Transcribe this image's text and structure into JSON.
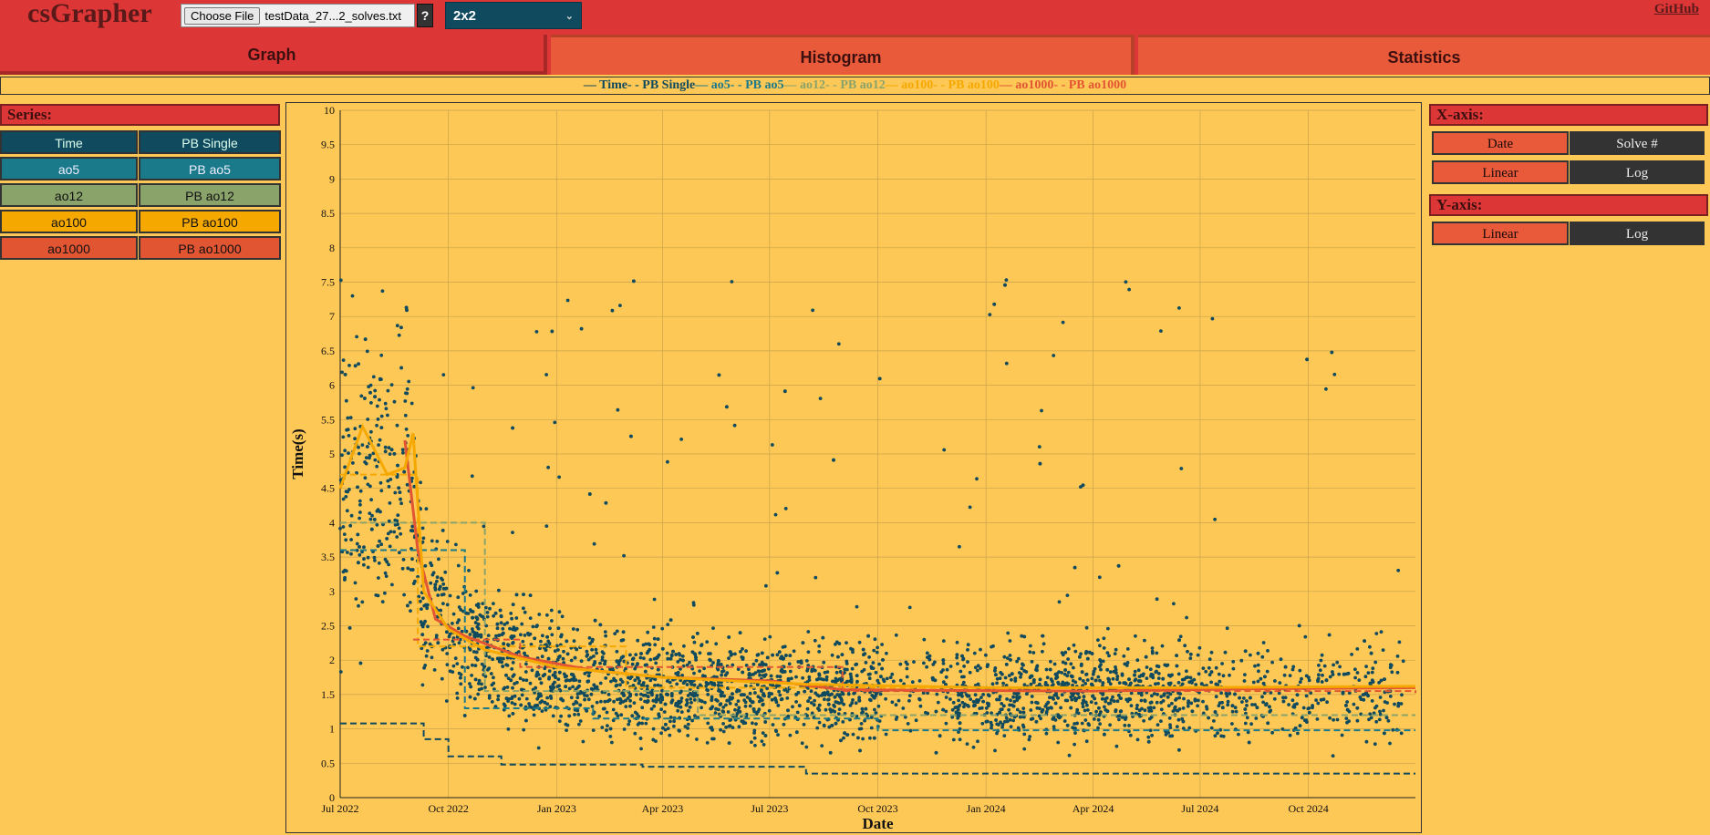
{
  "app": {
    "title": "csGrapher",
    "github_label": "GitHub",
    "file": {
      "button_label": "Choose File",
      "file_name": "testData_27...2_solves.txt"
    },
    "help_label": "?",
    "layout_select": {
      "value": "2x2",
      "chevron": "chevron-down-icon"
    }
  },
  "tabs": [
    {
      "label": "Graph",
      "active": true
    },
    {
      "label": "Histogram",
      "active": false
    },
    {
      "label": "Statistics",
      "active": false
    }
  ],
  "legend": [
    {
      "label": "Time",
      "color": "#0f4a5e",
      "dash": false
    },
    {
      "label": "PB Single",
      "color": "#0f4a5e",
      "dash": true
    },
    {
      "label": "ao5",
      "color": "#1a7a8a",
      "dash": false
    },
    {
      "label": "PB ao5",
      "color": "#1a7a8a",
      "dash": true
    },
    {
      "label": "ao12",
      "color": "#8aa36a",
      "dash": false
    },
    {
      "label": "PB ao12",
      "color": "#8aa36a",
      "dash": true
    },
    {
      "label": "ao100",
      "color": "#f5a800",
      "dash": false
    },
    {
      "label": "PB ao100",
      "color": "#f5a800",
      "dash": true
    },
    {
      "label": "ao1000",
      "color": "#e25533",
      "dash": false
    },
    {
      "label": "PB ao1000",
      "color": "#e25533",
      "dash": true
    }
  ],
  "series_panel": {
    "header": "Series:",
    "buttons": [
      {
        "label": "Time",
        "color": "#0f4a5e",
        "text_color": "#dfe"
      },
      {
        "label": "PB Single",
        "color": "#0f4a5e",
        "text_color": "#dfe"
      },
      {
        "label": "ao5",
        "color": "#1a7a8a",
        "text_color": "#eef"
      },
      {
        "label": "PB ao5",
        "color": "#1a7a8a",
        "text_color": "#eef"
      },
      {
        "label": "ao12",
        "color": "#8aa36a",
        "text_color": "#111"
      },
      {
        "label": "PB ao12",
        "color": "#8aa36a",
        "text_color": "#111"
      },
      {
        "label": "ao100",
        "color": "#f5a800",
        "text_color": "#111"
      },
      {
        "label": "PB ao100",
        "color": "#f5a800",
        "text_color": "#111"
      },
      {
        "label": "ao1000",
        "color": "#e25533",
        "text_color": "#111"
      },
      {
        "label": "PB ao1000",
        "color": "#e25533",
        "text_color": "#111"
      }
    ]
  },
  "x_axis_panel": {
    "header": "X-axis:",
    "mode_buttons": [
      {
        "label": "Date",
        "selected": true
      },
      {
        "label": "Solve #",
        "selected": false
      }
    ],
    "scale_buttons": [
      {
        "label": "Linear",
        "selected": true
      },
      {
        "label": "Log",
        "selected": false
      }
    ]
  },
  "y_axis_panel": {
    "header": "Y-axis:",
    "scale_buttons": [
      {
        "label": "Linear",
        "selected": true
      },
      {
        "label": "Log",
        "selected": false
      }
    ]
  },
  "chart_data": {
    "type": "scatter",
    "xlabel": "Date",
    "ylabel": "Time(s)",
    "xlim": [
      "2022-07-01",
      "2024-12-31"
    ],
    "ylim": [
      0,
      10
    ],
    "grid": true,
    "x_ticks": [
      "Jul 2022",
      "Oct 2022",
      "Jan 2023",
      "Apr 2023",
      "Jul 2023",
      "Oct 2023",
      "Jan 2024",
      "Apr 2024",
      "Jul 2024",
      "Oct 2024"
    ],
    "y_ticks": [
      "0",
      "0.5",
      "1",
      "1.5",
      "2",
      "2.5",
      "3",
      "3.5",
      "4",
      "4.5",
      "5",
      "5.5",
      "6",
      "6.5",
      "7",
      "7.5",
      "8",
      "8.5",
      "9",
      "9.5",
      "10"
    ],
    "series": [
      {
        "name": "PB Single",
        "dash": true,
        "color": "#0f4a5e",
        "x": [
          "2022-07-01",
          "2022-08-30",
          "2022-09-10",
          "2022-10-01",
          "2022-11-15",
          "2023-03-15",
          "2023-08-01",
          "2024-12-31"
        ],
        "values": [
          1.08,
          1.08,
          0.85,
          0.6,
          0.48,
          0.45,
          0.35,
          0.35
        ]
      },
      {
        "name": "PB ao5",
        "dash": true,
        "color": "#1a7a8a",
        "x": [
          "2022-07-01",
          "2022-08-31",
          "2022-10-15",
          "2023-02-01",
          "2023-10-01",
          "2024-12-31"
        ],
        "values": [
          3.6,
          3.6,
          1.3,
          1.15,
          0.98,
          0.98
        ]
      },
      {
        "name": "PB ao12",
        "dash": true,
        "color": "#8aa36a",
        "x": [
          "2022-07-01",
          "2022-08-31",
          "2022-11-01",
          "2023-05-01",
          "2024-12-31"
        ],
        "values": [
          4.0,
          4.0,
          1.55,
          1.2,
          1.2
        ]
      },
      {
        "name": "PB ao100",
        "dash": true,
        "color": "#f5a800",
        "x": [
          "2022-07-01",
          "2022-09-05",
          "2023-03-01",
          "2024-12-31"
        ],
        "values": [
          4.7,
          2.2,
          1.6,
          1.6
        ]
      },
      {
        "name": "PB ao1000",
        "dash": true,
        "color": "#e25533",
        "x": [
          "2022-09-01",
          "2022-12-01",
          "2023-09-01",
          "2024-12-31"
        ],
        "values": [
          2.3,
          1.9,
          1.55,
          1.52
        ]
      },
      {
        "name": "ao1000",
        "dash": false,
        "color": "#e25533",
        "x": [
          "2022-08-25",
          "2022-09-05",
          "2022-09-20",
          "2022-10-15",
          "2022-12-01",
          "2023-02-01",
          "2023-04-01",
          "2023-07-01",
          "2023-09-01",
          "2023-12-01",
          "2024-04-01",
          "2024-08-01",
          "2024-12-31"
        ],
        "values": [
          5.2,
          3.6,
          2.6,
          2.35,
          2.05,
          1.85,
          1.75,
          1.7,
          1.57,
          1.56,
          1.55,
          1.58,
          1.6
        ]
      },
      {
        "name": "ao100",
        "dash": false,
        "color": "#f5a800",
        "x": [
          "2022-07-01",
          "2022-07-20",
          "2022-08-10",
          "2022-08-25",
          "2022-09-01",
          "2022-09-10",
          "2022-10-01",
          "2022-11-01",
          "2023-01-01",
          "2023-04-01",
          "2023-08-01",
          "2024-01-01",
          "2024-06-01",
          "2024-12-31"
        ],
        "values": [
          4.5,
          5.4,
          4.7,
          4.8,
          5.3,
          3.0,
          2.45,
          2.15,
          1.9,
          1.75,
          1.65,
          1.6,
          1.6,
          1.62
        ]
      }
    ]
  }
}
